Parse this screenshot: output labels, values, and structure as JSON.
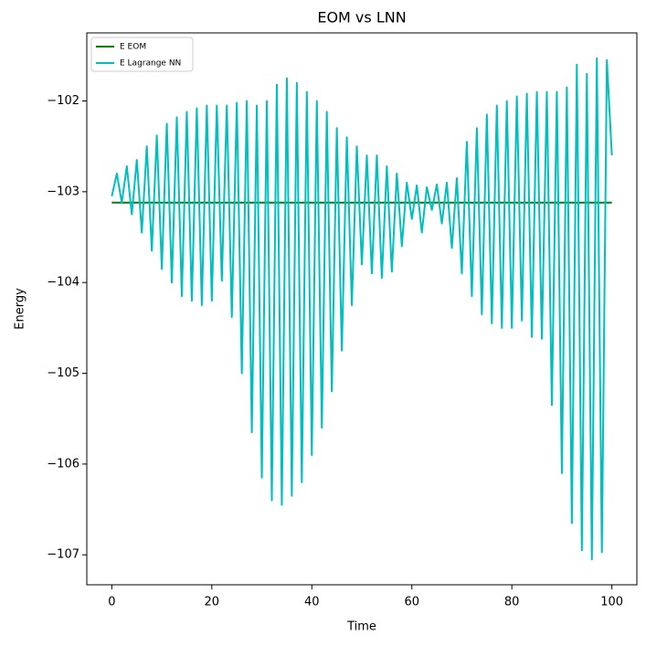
{
  "chart_data": {
    "type": "line",
    "title": "EOM vs LNN",
    "x_label": "Time",
    "y_label": "Energy",
    "x": [
      0,
      1,
      2,
      3,
      4,
      5,
      6,
      7,
      8,
      9,
      10,
      11,
      12,
      13,
      14,
      15,
      16,
      17,
      18,
      19,
      20,
      21,
      22,
      23,
      24,
      25,
      26,
      27,
      28,
      29,
      30,
      31,
      32,
      33,
      34,
      35,
      36,
      37,
      38,
      39,
      40,
      41,
      42,
      43,
      44,
      45,
      46,
      47,
      48,
      49,
      50,
      51,
      52,
      53,
      54,
      55,
      56,
      57,
      58,
      59,
      60,
      61,
      62,
      63,
      64,
      65,
      66,
      67,
      68,
      69,
      70,
      71,
      72,
      73,
      74,
      75,
      76,
      77,
      78,
      79,
      80,
      81,
      82,
      83,
      84,
      85,
      86,
      87,
      88,
      89,
      90,
      91,
      92,
      93,
      94,
      95,
      96,
      97,
      98,
      99,
      100
    ],
    "series": [
      {
        "name": "E EOM",
        "color": "#008000",
        "values": [
          -103.12,
          -103.12,
          -103.12,
          -103.12,
          -103.12,
          -103.12,
          -103.12,
          -103.12,
          -103.12,
          -103.12,
          -103.12,
          -103.12,
          -103.12,
          -103.12,
          -103.12,
          -103.12,
          -103.12,
          -103.12,
          -103.12,
          -103.12,
          -103.12,
          -103.12,
          -103.12,
          -103.12,
          -103.12,
          -103.12,
          -103.12,
          -103.12,
          -103.12,
          -103.12,
          -103.12,
          -103.12,
          -103.12,
          -103.12,
          -103.12,
          -103.12,
          -103.12,
          -103.12,
          -103.12,
          -103.12,
          -103.12,
          -103.12,
          -103.12,
          -103.12,
          -103.12,
          -103.12,
          -103.12,
          -103.12,
          -103.12,
          -103.12,
          -103.12,
          -103.12,
          -103.12,
          -103.12,
          -103.12,
          -103.12,
          -103.12,
          -103.12,
          -103.12,
          -103.12,
          -103.12,
          -103.12,
          -103.12,
          -103.12,
          -103.12,
          -103.12,
          -103.12,
          -103.12,
          -103.12,
          -103.12,
          -103.12,
          -103.12,
          -103.12,
          -103.12,
          -103.12,
          -103.12,
          -103.12,
          -103.12,
          -103.12,
          -103.12,
          -103.12,
          -103.12,
          -103.12,
          -103.12,
          -103.12,
          -103.12,
          -103.12,
          -103.12,
          -103.12,
          -103.12,
          -103.12,
          -103.12,
          -103.12,
          -103.12,
          -103.12,
          -103.12,
          -103.12,
          -103.12,
          -103.12,
          -103.12,
          -103.12
        ]
      },
      {
        "name": "E Lagrange NN",
        "color": "#00bfbf",
        "values": [
          -103.05,
          -102.8,
          -103.12,
          -102.72,
          -103.25,
          -102.65,
          -103.45,
          -102.5,
          -103.65,
          -102.38,
          -103.85,
          -102.25,
          -104.0,
          -102.18,
          -104.15,
          -102.12,
          -104.2,
          -102.08,
          -104.25,
          -102.05,
          -104.2,
          -102.05,
          -103.98,
          -102.05,
          -104.38,
          -102.02,
          -105.0,
          -102.0,
          -105.65,
          -102.05,
          -106.15,
          -102.0,
          -106.4,
          -101.82,
          -106.45,
          -101.75,
          -106.35,
          -101.8,
          -106.2,
          -101.9,
          -105.9,
          -102.0,
          -105.6,
          -102.12,
          -105.2,
          -102.3,
          -104.75,
          -102.4,
          -104.25,
          -102.5,
          -103.8,
          -102.6,
          -103.9,
          -102.6,
          -103.95,
          -102.72,
          -103.88,
          -102.8,
          -103.6,
          -102.9,
          -103.3,
          -102.93,
          -103.45,
          -102.95,
          -103.2,
          -102.92,
          -103.35,
          -102.9,
          -103.62,
          -102.85,
          -103.9,
          -102.45,
          -104.15,
          -102.3,
          -104.35,
          -102.15,
          -104.45,
          -102.05,
          -104.5,
          -102.0,
          -104.5,
          -101.95,
          -104.42,
          -101.92,
          -104.6,
          -101.9,
          -104.62,
          -101.9,
          -105.35,
          -101.9,
          -106.1,
          -101.85,
          -106.65,
          -101.6,
          -106.95,
          -101.7,
          -107.05,
          -101.53,
          -106.97,
          -101.55,
          -102.6
        ]
      }
    ],
    "xlim": [
      -5,
      105
    ],
    "xticks": [
      0,
      20,
      40,
      60,
      80,
      100
    ],
    "ylim": [
      -107.33,
      -101.25
    ],
    "yticks": [
      {
        "value": -107,
        "label": "−107"
      },
      {
        "value": -106,
        "label": "−106"
      },
      {
        "value": -105,
        "label": "−105"
      },
      {
        "value": -104,
        "label": "−104"
      },
      {
        "value": -103,
        "label": "−103"
      },
      {
        "value": -102,
        "label": "−102"
      }
    ],
    "legend": "upper left",
    "grid": false
  }
}
